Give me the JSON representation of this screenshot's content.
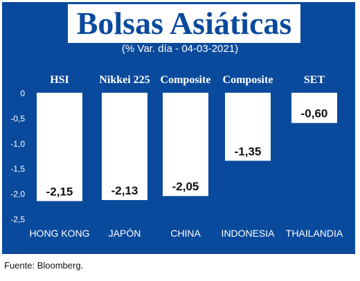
{
  "title": "Bolsas Asiáticas",
  "subtitle": "(% Var. día - 04-03-2021)",
  "source": "Fuente: Bloomberg.",
  "colors": {
    "background": "#0a4a9c",
    "bars": "#ffffff",
    "text": "#ffffff",
    "label_text": "#111111"
  },
  "chart_data": {
    "type": "bar",
    "title": "Bolsas Asiáticas",
    "subtitle": "(% Var. día - 04-03-2021)",
    "categories": [
      "HONG KONG",
      "JAPÓN",
      "CHINA",
      "INDONESIA",
      "THAILANDIA"
    ],
    "indices": [
      "HSI",
      "Nikkei 225",
      "Composite",
      "Composite",
      "SET"
    ],
    "values": [
      -2.15,
      -2.13,
      -2.05,
      -1.35,
      -0.6
    ],
    "value_labels": [
      "-2,15",
      "-2,13",
      "-2,05",
      "-1,35",
      "-0,60"
    ],
    "yticks": [
      0,
      -0.5,
      -1.0,
      -1.5,
      -2.0,
      -2.5
    ],
    "ytick_labels": [
      "0",
      "-0,5",
      "-1,0",
      "-1,5",
      "-2,0",
      "-2,5"
    ],
    "ylim": [
      -2.5,
      0
    ],
    "grid": false,
    "legend": "none"
  }
}
